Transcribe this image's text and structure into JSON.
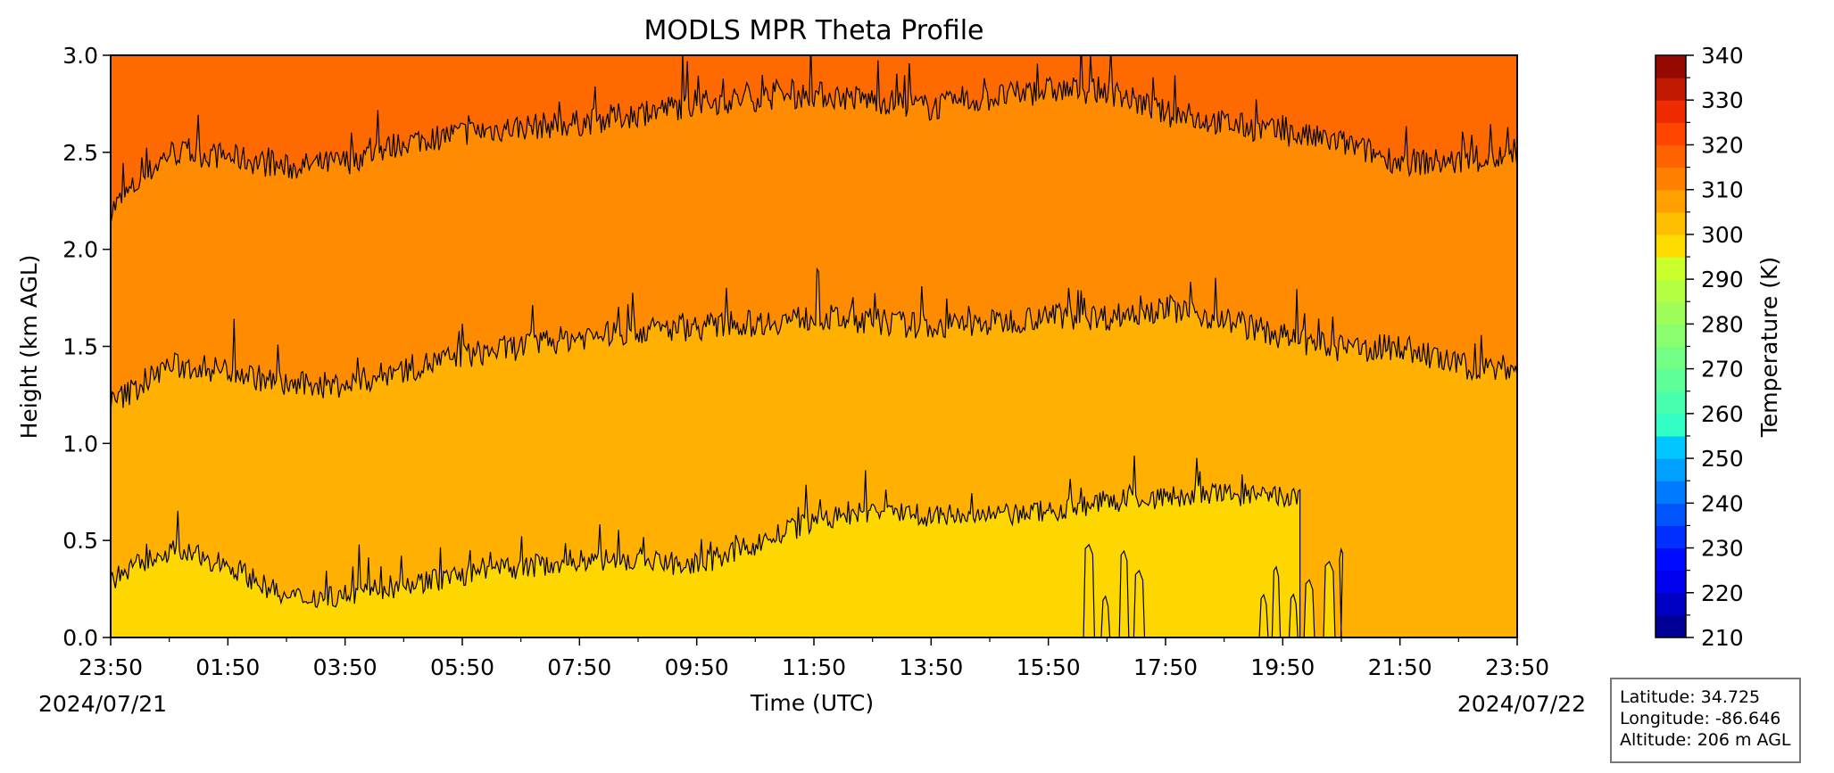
{
  "chart_data": {
    "type": "heatmap",
    "title": "MODLS MPR Theta Profile",
    "xlabel": "Time (UTC)",
    "ylabel": "Height (km AGL)",
    "x_ticks": [
      "23:50",
      "01:50",
      "03:50",
      "05:50",
      "07:50",
      "09:50",
      "11:50",
      "13:50",
      "15:50",
      "17:50",
      "19:50",
      "21:50",
      "23:50"
    ],
    "x_date_start": "2024/07/21",
    "x_date_end": "2024/07/22",
    "y_ticks": [
      "0.0",
      "0.5",
      "1.0",
      "1.5",
      "2.0",
      "2.5",
      "3.0"
    ],
    "ylim": [
      0,
      3.0
    ],
    "colorbar": {
      "label": "Temperature (K)",
      "range": [
        210,
        340
      ],
      "step": 5,
      "ticks": [
        "210",
        "220",
        "230",
        "240",
        "250",
        "260",
        "270",
        "280",
        "290",
        "300",
        "310",
        "320",
        "330",
        "340"
      ]
    },
    "contour_levels_K": [
      300,
      305,
      310,
      315
    ],
    "contour_boundaries_km": {
      "levels": [
        "300/305 K",
        "305/310 K",
        "310/315 K"
      ],
      "hours_after_start": [
        0,
        1,
        2,
        3,
        4,
        5,
        6,
        7,
        8,
        9,
        10,
        11,
        12,
        13,
        14,
        15,
        16,
        17,
        18,
        19,
        20,
        21,
        22,
        23,
        24
      ],
      "lower": [
        0.3,
        0.45,
        0.38,
        0.2,
        0.22,
        0.27,
        0.32,
        0.36,
        0.4,
        0.4,
        0.37,
        0.48,
        0.6,
        0.65,
        0.63,
        0.62,
        0.65,
        0.7,
        0.72,
        0.74,
        0.72,
        null,
        null,
        null,
        null
      ],
      "middle": [
        1.2,
        1.4,
        1.38,
        1.3,
        1.3,
        1.38,
        1.45,
        1.5,
        1.55,
        1.58,
        1.6,
        1.62,
        1.65,
        1.63,
        1.6,
        1.62,
        1.66,
        1.65,
        1.7,
        1.64,
        1.55,
        1.48,
        1.5,
        1.4,
        1.38
      ],
      "upper": [
        2.2,
        2.5,
        2.48,
        2.42,
        2.45,
        2.55,
        2.6,
        2.63,
        2.65,
        2.7,
        2.75,
        2.78,
        2.8,
        2.77,
        2.73,
        2.78,
        2.82,
        2.82,
        2.7,
        2.65,
        2.6,
        2.55,
        2.45,
        2.45,
        2.48
      ]
    },
    "warm_pockets_hours": [
      [
        16.6,
        17.7
      ],
      [
        19.6,
        21.0
      ]
    ],
    "grid": false
  },
  "info": {
    "latitude": "Latitude: 34.725",
    "longitude": "Longitude: -86.646",
    "altitude": "Altitude: 206 m AGL"
  },
  "colors": {
    "band_lower": "#ffd700",
    "band_mid": "#ffb000",
    "band_upper": "#ff8c00",
    "band_top": "#ff6a00"
  }
}
